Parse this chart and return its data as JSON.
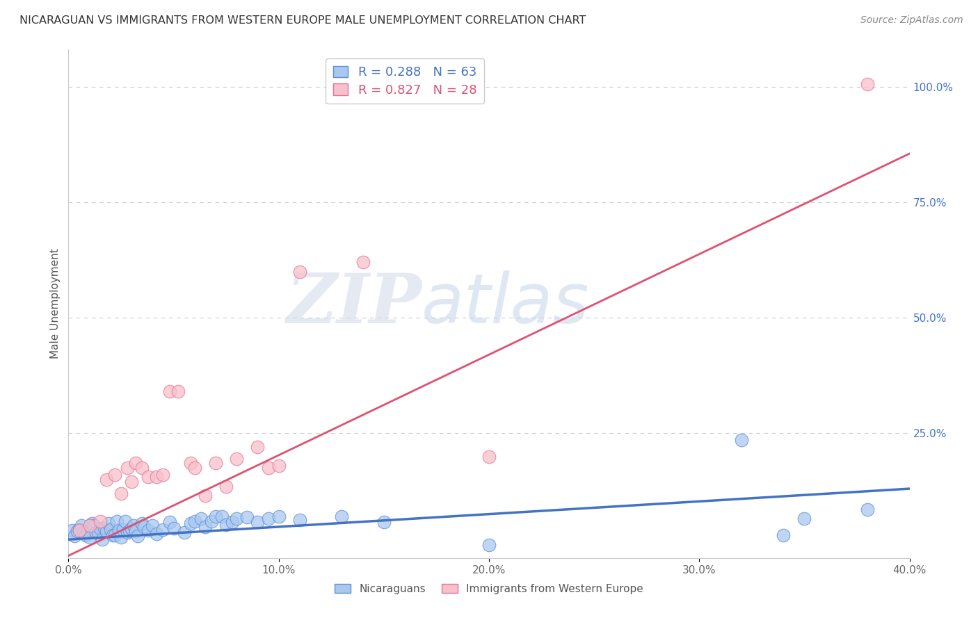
{
  "title": "NICARAGUAN VS IMMIGRANTS FROM WESTERN EUROPE MALE UNEMPLOYMENT CORRELATION CHART",
  "source": "Source: ZipAtlas.com",
  "ylabel": "Male Unemployment",
  "series1_label": "Nicaraguans",
  "series1_color": "#A8C8F0",
  "series1_edge_color": "#5B8ED6",
  "series1_line_color": "#4472C4",
  "series1_R": 0.288,
  "series1_N": 63,
  "series2_label": "Immigrants from Western Europe",
  "series2_color": "#F8C0CC",
  "series2_edge_color": "#E87090",
  "series2_line_color": "#E05070",
  "series2_R": 0.827,
  "series2_N": 28,
  "xlim": [
    0.0,
    0.4
  ],
  "ylim": [
    -0.02,
    1.08
  ],
  "xticks": [
    0.0,
    0.1,
    0.2,
    0.3,
    0.4
  ],
  "xtick_labels": [
    "0.0%",
    "10.0%",
    "20.0%",
    "30.0%",
    "40.0%"
  ],
  "yticks_right": [
    0.25,
    0.5,
    0.75,
    1.0
  ],
  "ytick_labels_right": [
    "25.0%",
    "50.0%",
    "75.0%",
    "100.0%"
  ],
  "grid_color": "#CCCCCC",
  "watermark_zip": "ZIP",
  "watermark_atlas": "atlas",
  "series1_line_x0": 0.0,
  "series1_line_y0": 0.02,
  "series1_line_x1": 0.4,
  "series1_line_y1": 0.13,
  "series2_line_x0": 0.0,
  "series2_line_y0": -0.015,
  "series2_line_x1": 0.4,
  "series2_line_y1": 0.855,
  "series1_x": [
    0.002,
    0.003,
    0.004,
    0.005,
    0.006,
    0.007,
    0.008,
    0.009,
    0.01,
    0.011,
    0.012,
    0.013,
    0.014,
    0.015,
    0.016,
    0.017,
    0.018,
    0.019,
    0.02,
    0.021,
    0.022,
    0.023,
    0.024,
    0.025,
    0.026,
    0.027,
    0.028,
    0.029,
    0.03,
    0.031,
    0.032,
    0.033,
    0.035,
    0.036,
    0.038,
    0.04,
    0.042,
    0.045,
    0.048,
    0.05,
    0.055,
    0.058,
    0.06,
    0.063,
    0.065,
    0.068,
    0.07,
    0.073,
    0.075,
    0.078,
    0.08,
    0.085,
    0.09,
    0.095,
    0.1,
    0.11,
    0.13,
    0.15,
    0.2,
    0.32,
    0.34,
    0.35,
    0.38
  ],
  "series1_y": [
    0.04,
    0.028,
    0.038,
    0.042,
    0.05,
    0.035,
    0.03,
    0.04,
    0.025,
    0.055,
    0.05,
    0.035,
    0.035,
    0.045,
    0.02,
    0.045,
    0.038,
    0.055,
    0.042,
    0.03,
    0.03,
    0.06,
    0.04,
    0.025,
    0.042,
    0.06,
    0.035,
    0.038,
    0.045,
    0.05,
    0.038,
    0.028,
    0.055,
    0.048,
    0.04,
    0.05,
    0.032,
    0.042,
    0.058,
    0.045,
    0.035,
    0.055,
    0.06,
    0.065,
    0.048,
    0.06,
    0.07,
    0.07,
    0.052,
    0.058,
    0.065,
    0.068,
    0.058,
    0.065,
    0.07,
    0.062,
    0.07,
    0.058,
    0.008,
    0.235,
    0.03,
    0.065,
    0.085
  ],
  "series2_x": [
    0.005,
    0.01,
    0.015,
    0.018,
    0.022,
    0.025,
    0.028,
    0.03,
    0.032,
    0.035,
    0.038,
    0.042,
    0.045,
    0.048,
    0.052,
    0.058,
    0.06,
    0.065,
    0.07,
    0.075,
    0.08,
    0.09,
    0.095,
    0.1,
    0.11,
    0.14,
    0.2,
    0.38
  ],
  "series2_y": [
    0.04,
    0.05,
    0.06,
    0.15,
    0.16,
    0.12,
    0.175,
    0.145,
    0.185,
    0.175,
    0.155,
    0.155,
    0.16,
    0.34,
    0.34,
    0.185,
    0.175,
    0.115,
    0.185,
    0.135,
    0.195,
    0.22,
    0.175,
    0.18,
    0.6,
    0.62,
    0.2,
    1.005
  ]
}
